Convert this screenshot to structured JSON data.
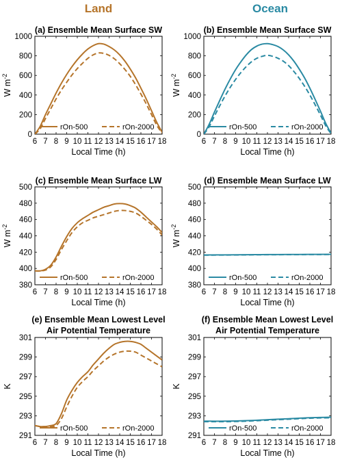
{
  "column_headers": [
    {
      "text": "Land",
      "color": "#b5742a"
    },
    {
      "text": "Ocean",
      "color": "#2a8aa3"
    }
  ],
  "chart_data": [
    {
      "type": "line",
      "title": "(a) Ensemble Mean Surface SW",
      "xlabel": "Local Time (h)",
      "ylabel": "W m-2",
      "ylabel_main": "W m",
      "ylabel_sup": "-2",
      "xlim": [
        6,
        18
      ],
      "ylim": [
        0,
        1000
      ],
      "xticks": [
        6,
        7,
        8,
        9,
        10,
        11,
        12,
        13,
        14,
        15,
        16,
        17,
        18
      ],
      "yticks": [
        0,
        200,
        400,
        600,
        800,
        1000
      ],
      "color": "#b5742a",
      "legend_position": "bottom",
      "series": [
        {
          "name": "rOn-500",
          "dash": "solid",
          "x": [
            6,
            6.5,
            7,
            7.5,
            8,
            8.5,
            9,
            9.5,
            10,
            10.5,
            11,
            11.5,
            12,
            12.5,
            13,
            13.5,
            14,
            14.5,
            15,
            15.5,
            16,
            16.5,
            17,
            17.5,
            18
          ],
          "y": [
            0,
            80,
            200,
            310,
            420,
            520,
            610,
            690,
            760,
            820,
            870,
            905,
            925,
            920,
            895,
            860,
            810,
            745,
            665,
            575,
            470,
            360,
            240,
            120,
            20
          ]
        },
        {
          "name": "rOn-2000",
          "dash": "dashed",
          "x": [
            6,
            6.5,
            7,
            7.5,
            8,
            8.5,
            9,
            9.5,
            10,
            10.5,
            11,
            11.5,
            12,
            12.5,
            13,
            13.5,
            14,
            14.5,
            15,
            15.5,
            16,
            16.5,
            17,
            17.5,
            18
          ],
          "y": [
            0,
            55,
            160,
            260,
            360,
            450,
            530,
            605,
            670,
            725,
            775,
            810,
            830,
            825,
            805,
            770,
            720,
            660,
            590,
            505,
            410,
            310,
            200,
            90,
            10
          ]
        }
      ]
    },
    {
      "type": "line",
      "title": "(b) Ensemble Mean Surface SW",
      "xlabel": "Local Time (h)",
      "ylabel": "W m-2",
      "ylabel_main": "W m",
      "ylabel_sup": "-2",
      "xlim": [
        6,
        18
      ],
      "ylim": [
        0,
        1000
      ],
      "xticks": [
        6,
        7,
        8,
        9,
        10,
        11,
        12,
        13,
        14,
        15,
        16,
        17,
        18
      ],
      "yticks": [
        0,
        200,
        400,
        600,
        800,
        1000
      ],
      "color": "#2a8aa3",
      "legend_position": "bottom",
      "series": [
        {
          "name": "rOn-500",
          "dash": "solid",
          "x": [
            6,
            6.5,
            7,
            7.5,
            8,
            8.5,
            9,
            9.5,
            10,
            10.5,
            11,
            11.5,
            12,
            12.5,
            13,
            13.5,
            14,
            14.5,
            15,
            15.5,
            16,
            16.5,
            17,
            17.5,
            18
          ],
          "y": [
            0,
            100,
            225,
            345,
            460,
            565,
            660,
            740,
            810,
            865,
            900,
            920,
            925,
            915,
            895,
            860,
            810,
            745,
            665,
            575,
            470,
            355,
            235,
            110,
            10
          ]
        },
        {
          "name": "rOn-2000",
          "dash": "dashed",
          "x": [
            6,
            6.5,
            7,
            7.5,
            8,
            8.5,
            9,
            9.5,
            10,
            10.5,
            11,
            11.5,
            12,
            12.5,
            13,
            13.5,
            14,
            14.5,
            15,
            15.5,
            16,
            16.5,
            17,
            17.5,
            18
          ],
          "y": [
            0,
            75,
            185,
            290,
            390,
            480,
            560,
            630,
            690,
            740,
            775,
            795,
            805,
            795,
            775,
            745,
            700,
            640,
            570,
            490,
            400,
            300,
            195,
            85,
            5
          ]
        }
      ]
    },
    {
      "type": "line",
      "title": "(c) Ensemble Mean Surface LW",
      "xlabel": "Local Time (h)",
      "ylabel": "W m-2",
      "ylabel_main": "W m",
      "ylabel_sup": "-2",
      "xlim": [
        6,
        18
      ],
      "ylim": [
        380,
        500
      ],
      "xticks": [
        6,
        7,
        8,
        9,
        10,
        11,
        12,
        13,
        14,
        15,
        16,
        17,
        18
      ],
      "yticks": [
        380,
        400,
        420,
        440,
        460,
        480,
        500
      ],
      "color": "#b5742a",
      "legend_position": "bottom",
      "series": [
        {
          "name": "rOn-500",
          "dash": "solid",
          "x": [
            6,
            6.5,
            7,
            7.5,
            8,
            8.5,
            9,
            9.5,
            10,
            10.5,
            11,
            11.5,
            12,
            12.5,
            13,
            13.5,
            14,
            14.5,
            15,
            15.5,
            16,
            16.5,
            17,
            17.5,
            18
          ],
          "y": [
            397,
            397,
            399,
            404,
            414,
            427,
            439,
            449,
            456,
            461,
            465,
            469,
            472,
            475,
            477,
            479,
            479.5,
            479,
            477,
            474,
            469,
            463,
            457,
            451,
            444
          ]
        },
        {
          "name": "rOn-2000",
          "dash": "dashed",
          "x": [
            6,
            6.5,
            7,
            7.5,
            8,
            8.5,
            9,
            9.5,
            10,
            10.5,
            11,
            11.5,
            12,
            12.5,
            13,
            13.5,
            14,
            14.5,
            15,
            15.5,
            16,
            16.5,
            17,
            17.5,
            18
          ],
          "y": [
            397,
            397,
            398,
            402,
            411,
            423,
            434,
            444,
            451,
            456,
            459,
            462,
            464,
            466,
            468,
            470,
            471,
            471,
            470,
            468,
            464,
            459,
            454,
            448,
            441
          ]
        }
      ]
    },
    {
      "type": "line",
      "title": "(d) Ensemble Mean Surface LW",
      "xlabel": "Local Time (h)",
      "ylabel": "W m-2",
      "ylabel_main": "W m",
      "ylabel_sup": "-2",
      "xlim": [
        6,
        18
      ],
      "ylim": [
        380,
        500
      ],
      "xticks": [
        6,
        7,
        8,
        9,
        10,
        11,
        12,
        13,
        14,
        15,
        16,
        17,
        18
      ],
      "yticks": [
        380,
        400,
        420,
        440,
        460,
        480,
        500
      ],
      "color": "#2a8aa3",
      "legend_position": "bottom",
      "series": [
        {
          "name": "rOn-500",
          "dash": "solid",
          "x": [
            6,
            8,
            10,
            12,
            14,
            16,
            18
          ],
          "y": [
            416.5,
            416.6,
            416.8,
            417,
            417.1,
            417.2,
            417.3
          ]
        },
        {
          "name": "rOn-2000",
          "dash": "dashed",
          "x": [
            6,
            8,
            10,
            12,
            14,
            16,
            18
          ],
          "y": [
            416.3,
            416.4,
            416.6,
            416.8,
            416.9,
            417,
            417.1
          ]
        }
      ]
    },
    {
      "type": "line",
      "title": "(e) Ensemble Mean Lowest Level Air Potential Temperature",
      "title_lines": [
        "(e) Ensemble Mean Lowest Level",
        "Air Potential Temperature"
      ],
      "xlabel": "Local Time (h)",
      "ylabel": "K",
      "ylabel_main": "K",
      "ylabel_sup": "",
      "xlim": [
        6,
        18
      ],
      "ylim": [
        291,
        301
      ],
      "xticks": [
        6,
        7,
        8,
        9,
        10,
        11,
        12,
        13,
        14,
        15,
        16,
        17,
        18
      ],
      "yticks": [
        291,
        293,
        295,
        297,
        299,
        301
      ],
      "color": "#b5742a",
      "legend_position": "bottom",
      "series": [
        {
          "name": "rOn-500",
          "dash": "solid",
          "x": [
            6,
            6.5,
            7,
            7.5,
            8,
            8.5,
            9,
            9.5,
            10,
            10.5,
            11,
            11.5,
            12,
            12.5,
            13,
            13.5,
            14,
            14.5,
            15,
            15.5,
            16,
            16.5,
            17,
            17.5,
            18
          ],
          "y": [
            292,
            291.9,
            291.9,
            292,
            292.2,
            293.2,
            294.6,
            295.6,
            296.4,
            297,
            297.5,
            298.2,
            298.8,
            299.4,
            299.9,
            300.3,
            300.5,
            300.6,
            300.6,
            300.5,
            300.3,
            299.9,
            299.5,
            299.1,
            298.7
          ]
        },
        {
          "name": "rOn-2000",
          "dash": "dashed",
          "x": [
            6,
            6.5,
            7,
            7.5,
            8,
            8.5,
            9,
            9.5,
            10,
            10.5,
            11,
            11.5,
            12,
            12.5,
            13,
            13.5,
            14,
            14.5,
            15,
            15.5,
            16,
            16.5,
            17,
            17.5,
            18
          ],
          "y": [
            292,
            291.9,
            291.9,
            291.9,
            292,
            292.7,
            293.9,
            295,
            295.9,
            296.5,
            297,
            297.6,
            298.1,
            298.6,
            299,
            299.3,
            299.5,
            299.6,
            299.6,
            299.5,
            299.2,
            298.9,
            298.6,
            298.3,
            298
          ]
        }
      ]
    },
    {
      "type": "line",
      "title": "(f) Ensemble Mean Lowest Level Air Potential Temperature",
      "title_lines": [
        "(f) Ensemble Mean Lowest Level",
        "Air Potential Temperature"
      ],
      "xlabel": "Local Time (h)",
      "ylabel": "K",
      "ylabel_main": "K",
      "ylabel_sup": "",
      "xlim": [
        6,
        18
      ],
      "ylim": [
        291,
        301
      ],
      "xticks": [
        6,
        7,
        8,
        9,
        10,
        11,
        12,
        13,
        14,
        15,
        16,
        17,
        18
      ],
      "yticks": [
        291,
        293,
        295,
        297,
        299,
        301
      ],
      "color": "#2a8aa3",
      "legend_position": "bottom",
      "series": [
        {
          "name": "rOn-500",
          "dash": "solid",
          "x": [
            6,
            8,
            10,
            12,
            14,
            16,
            18
          ],
          "y": [
            292.45,
            292.45,
            292.5,
            292.6,
            292.7,
            292.8,
            292.85
          ]
        },
        {
          "name": "rOn-2000",
          "dash": "dashed",
          "x": [
            6,
            8,
            10,
            12,
            14,
            16,
            18
          ],
          "y": [
            292.4,
            292.4,
            292.45,
            292.55,
            292.65,
            292.75,
            292.8
          ]
        }
      ]
    }
  ]
}
